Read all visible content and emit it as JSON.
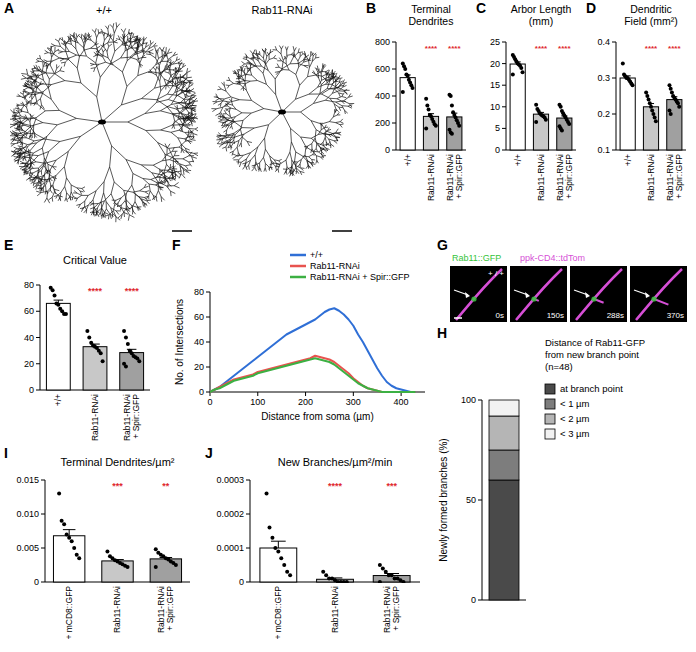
{
  "image_panels": [
    {
      "panel": "A",
      "labels": [
        "+/+",
        "Rab11-RNAi"
      ]
    },
    {
      "panel": "G",
      "channels": [
        {
          "name": "Rab11::GFP",
          "color": "#35c43a"
        },
        {
          "name": "ppk-CD4::tdTom",
          "color": "#d64fd6"
        }
      ],
      "genotype": "+ / +",
      "times": [
        "0s",
        "150s",
        "288s",
        "370s"
      ]
    }
  ],
  "chart_data": [
    {
      "type": "bar",
      "panel": "B",
      "title": "Terminal Dendrites",
      "categories": [
        "+/+",
        "Rab11-RNAi",
        "Rab11-RNAi + Spir::GFP"
      ],
      "values": [
        536,
        249,
        245
      ],
      "errors": [
        20,
        20,
        28
      ],
      "points": [
        [
          640,
          620,
          600,
          560,
          550,
          520,
          500,
          480,
          460,
          430
        ],
        [
          380,
          330,
          300,
          260,
          250,
          230,
          210,
          190,
          180,
          160
        ],
        [
          410,
          400,
          330,
          280,
          260,
          240,
          220,
          200,
          180,
          150,
          130,
          120
        ]
      ],
      "colors": [
        "#ffffff",
        "#c8c8c8",
        "#a0a0a0"
      ],
      "significance": [
        null,
        "****",
        "****"
      ],
      "ylim": [
        0,
        800
      ],
      "yticks": [
        0,
        200,
        400,
        600,
        800
      ]
    },
    {
      "type": "bar",
      "panel": "C",
      "title": "Arbor Length (mm)",
      "categories": [
        "+/+",
        "Rab11-RNAi",
        "Rab11-RNAi + Spir::GFP"
      ],
      "values": [
        19.9,
        8.3,
        7.4
      ],
      "errors": [
        0.5,
        0.4,
        0.5
      ],
      "points": [
        [
          22,
          21.5,
          21,
          20.5,
          20,
          19.8,
          19.5,
          19,
          18,
          17.5
        ],
        [
          10.5,
          9.5,
          9,
          8.5,
          8.2,
          8,
          7.8,
          7.5,
          7,
          6.5
        ],
        [
          10.5,
          10,
          9,
          8.5,
          8,
          7.5,
          7,
          6.5,
          6,
          5.5,
          5,
          4.5
        ]
      ],
      "colors": [
        "#ffffff",
        "#c8c8c8",
        "#a0a0a0"
      ],
      "significance": [
        null,
        "****",
        "****"
      ],
      "ylim": [
        0,
        25
      ],
      "yticks": [
        0,
        5,
        10,
        15,
        20,
        25
      ]
    },
    {
      "type": "bar",
      "panel": "D",
      "title": "Dendritic Field (mm²)",
      "categories": [
        "+/+",
        "Rab11-RNAi",
        "Rab11-RNAi + Spir::GFP"
      ],
      "values": [
        0.3,
        0.22,
        0.24
      ],
      "errors": [
        0.006,
        0.009,
        0.008
      ],
      "points": [
        [
          0.34,
          0.31,
          0.305,
          0.3,
          0.3,
          0.295,
          0.29,
          0.285,
          0.28
        ],
        [
          0.26,
          0.25,
          0.24,
          0.23,
          0.22,
          0.21,
          0.2,
          0.19,
          0.18
        ],
        [
          0.28,
          0.27,
          0.26,
          0.25,
          0.245,
          0.24,
          0.235,
          0.23,
          0.22,
          0.21,
          0.2
        ]
      ],
      "colors": [
        "#ffffff",
        "#c8c8c8",
        "#a0a0a0"
      ],
      "significance": [
        null,
        "****",
        "****"
      ],
      "ylim": [
        0.1,
        0.4
      ],
      "yticks": [
        0.1,
        0.2,
        0.3,
        0.4
      ]
    },
    {
      "type": "bar",
      "panel": "E",
      "title": "Critical Value",
      "categories": [
        "+/+",
        "Rab11-RNAi",
        "Rab11-RNAi + Spir::GFP"
      ],
      "values": [
        66,
        33,
        28.5
      ],
      "errors": [
        2.5,
        2,
        2.5
      ],
      "points": [
        [
          78,
          76,
          72,
          66,
          65,
          62,
          60,
          58,
          58
        ],
        [
          45,
          40,
          36,
          34,
          33,
          32,
          30,
          28,
          22
        ],
        [
          45,
          40,
          35,
          30,
          28,
          26,
          25,
          24,
          22,
          20,
          18
        ]
      ],
      "colors": [
        "#ffffff",
        "#c8c8c8",
        "#a0a0a0"
      ],
      "significance": [
        null,
        "****",
        "****"
      ],
      "ylim": [
        0,
        80
      ],
      "yticks": [
        0,
        20,
        40,
        60,
        80
      ]
    },
    {
      "type": "line",
      "panel": "F",
      "xlabel": "Distance from soma (µm)",
      "ylabel": "No. of Intersections",
      "x": [
        0,
        10,
        20,
        30,
        40,
        50,
        60,
        70,
        80,
        90,
        100,
        110,
        120,
        130,
        140,
        150,
        160,
        170,
        180,
        190,
        200,
        210,
        220,
        230,
        240,
        250,
        260,
        270,
        280,
        290,
        300,
        310,
        320,
        330,
        340,
        350,
        360,
        370,
        380,
        390,
        400,
        410,
        420,
        430
      ],
      "series": [
        {
          "name": "+/+",
          "color": "#2f6fd6",
          "values": [
            0,
            2,
            4,
            7,
            10,
            13,
            16,
            19,
            22,
            25,
            28,
            31,
            34,
            37,
            40,
            43,
            46,
            48,
            50,
            52,
            54,
            56,
            58,
            61,
            64,
            66,
            67,
            65,
            62,
            58,
            53,
            46,
            40,
            33,
            26,
            19,
            13,
            8,
            5,
            3,
            2,
            1,
            0,
            0
          ]
        },
        {
          "name": "Rab11-RNAi",
          "color": "#e8534f",
          "values": [
            0,
            2,
            4,
            6,
            8,
            10,
            11,
            12,
            13,
            14,
            16,
            17,
            18,
            19,
            20,
            21,
            22,
            23,
            24,
            25,
            26,
            27,
            29,
            28,
            27,
            26,
            24,
            21,
            18,
            15,
            11,
            8,
            5,
            3,
            2,
            1,
            0,
            0,
            0,
            0,
            0,
            0,
            0,
            0
          ]
        },
        {
          "name": "Rab11-RNAi + Spir::GFP",
          "color": "#3cb043",
          "values": [
            0,
            2,
            3,
            5,
            7,
            9,
            10,
            11,
            12,
            13,
            15,
            16,
            17,
            18,
            19,
            20,
            21,
            22,
            23,
            24,
            25,
            26,
            27,
            26,
            25,
            24,
            22,
            19,
            16,
            13,
            10,
            7,
            5,
            3,
            2,
            1,
            0,
            0,
            0,
            0,
            0,
            0,
            0,
            0
          ]
        }
      ],
      "xlim": [
        0,
        450
      ],
      "xticks": [
        0,
        100,
        200,
        300,
        400
      ],
      "ylim": [
        0,
        80
      ],
      "yticks": [
        0,
        20,
        40,
        60,
        80
      ],
      "legend": "top right"
    },
    {
      "type": "bar",
      "stacked": true,
      "panel": "H",
      "title": "Distance of Rab11-GFP from new branch point (n=48)",
      "ylabel": "Newly formed branches (%)",
      "categories": [
        null
      ],
      "series": [
        {
          "name": "at branch point",
          "color": "#4a4a4a",
          "values": [
            60
          ]
        },
        {
          "name": "< 1 µm",
          "color": "#7d7d7d",
          "values": [
            15
          ]
        },
        {
          "name": "< 2 µm",
          "color": "#b5b5b5",
          "values": [
            17
          ]
        },
        {
          "name": "< 3 µm",
          "color": "#f2f2f2",
          "values": [
            8
          ]
        }
      ],
      "ylim": [
        0,
        100
      ],
      "yticks": [
        0,
        50,
        100
      ],
      "legend": "right"
    },
    {
      "type": "bar",
      "panel": "I",
      "title": "Terminal Dendrites/µm²",
      "categories": [
        "+ mCD8::GFP",
        "Rab11-RNAi",
        "Rab11-RNAi + Spir::GFP"
      ],
      "values": [
        0.0068,
        0.0031,
        0.0034
      ],
      "errors": [
        0.0009,
        0.0002,
        0.0002
      ],
      "points": [
        [
          0.013,
          0.009,
          0.0085,
          0.007,
          0.0065,
          0.006,
          0.005,
          0.004,
          0.0035
        ],
        [
          0.0045,
          0.0038,
          0.0035,
          0.0032,
          0.003,
          0.0028,
          0.0026,
          0.0024,
          0.0022
        ],
        [
          0.0048,
          0.0043,
          0.004,
          0.0038,
          0.0035,
          0.0033,
          0.003,
          0.0028,
          0.0025,
          0.0022
        ]
      ],
      "colors": [
        "#ffffff",
        "#c8c8c8",
        "#a0a0a0"
      ],
      "significance": [
        null,
        "***",
        "**"
      ],
      "ylim": [
        0,
        0.015
      ],
      "yticks": [
        0,
        0.005,
        {
          "value": 0.01,
          "label": "0.010"
        },
        0.015
      ]
    },
    {
      "type": "bar",
      "panel": "J",
      "title": "New Branches/µm²/min",
      "categories": [
        "+ mCD8::GFP",
        "Rab11-RNAi",
        "Rab11-RNAi + Spir::GFP"
      ],
      "values": [
        0.0001,
        8e-06,
        1.9e-05
      ],
      "errors": [
        2e-05,
        4e-06,
        6e-06
      ],
      "points": [
        [
          0.00026,
          0.00016,
          0.00013,
          0.0001,
          9e-05,
          7e-05,
          5e-05,
          3e-05,
          2e-05
        ],
        [
          3e-05,
          2e-05,
          1e-05,
          1e-05,
          5e-06,
          0,
          0,
          0,
          0
        ],
        [
          5e-05,
          4e-05,
          3e-05,
          2e-05,
          2e-05,
          1e-05,
          1e-05,
          5e-06,
          0,
          0
        ]
      ],
      "colors": [
        "#ffffff",
        "#c8c8c8",
        "#a0a0a0"
      ],
      "significance": [
        null,
        "****",
        "***"
      ],
      "ylim": [
        0,
        0.0003
      ],
      "yticks": [
        0,
        0.0001,
        0.0002,
        0.0003
      ]
    }
  ]
}
